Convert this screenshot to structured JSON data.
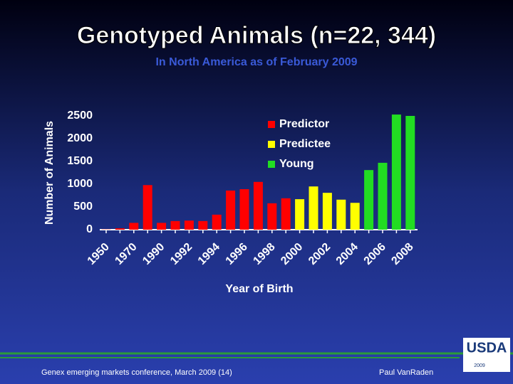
{
  "title": "Genotyped Animals (n=22, 344)",
  "subtitle": "In North America as of February 2009",
  "chart_data": {
    "type": "bar",
    "x_label": "Year of Birth",
    "y_label": "Number of Animals",
    "categories": [
      "1950",
      null,
      "1970",
      null,
      "1990",
      null,
      "1992",
      null,
      "1994",
      null,
      "1996",
      null,
      "1998",
      null,
      "2000",
      null,
      "2002",
      null,
      "2004",
      null,
      "2006",
      null,
      "2008"
    ],
    "series": [
      {
        "name": "Predictor",
        "color": "#ff0000",
        "values": [
          5,
          30,
          150,
          980,
          150,
          190,
          200,
          190,
          330,
          860,
          890,
          1050,
          580,
          690,
          null,
          null,
          null,
          null,
          null,
          null,
          null,
          null,
          null
        ]
      },
      {
        "name": "Predictee",
        "color": "#ffff00",
        "values": [
          null,
          null,
          null,
          null,
          null,
          null,
          null,
          null,
          null,
          null,
          null,
          null,
          null,
          null,
          670,
          950,
          810,
          660,
          590,
          null,
          null,
          null,
          null
        ]
      },
      {
        "name": "Young",
        "color": "#22dd22",
        "values": [
          null,
          null,
          null,
          null,
          null,
          null,
          null,
          null,
          null,
          null,
          null,
          null,
          null,
          null,
          null,
          null,
          null,
          null,
          null,
          1310,
          1470,
          2530,
          2500
        ]
      }
    ],
    "ylim": [
      0,
      2500
    ],
    "yticks": [
      0,
      500,
      1000,
      1500,
      2000,
      2500
    ]
  },
  "footer": {
    "left": "Genex emerging markets conference, March 2009 (14)",
    "right": "Paul VanRaden",
    "logo": "USDA",
    "logo_year": "2009"
  }
}
